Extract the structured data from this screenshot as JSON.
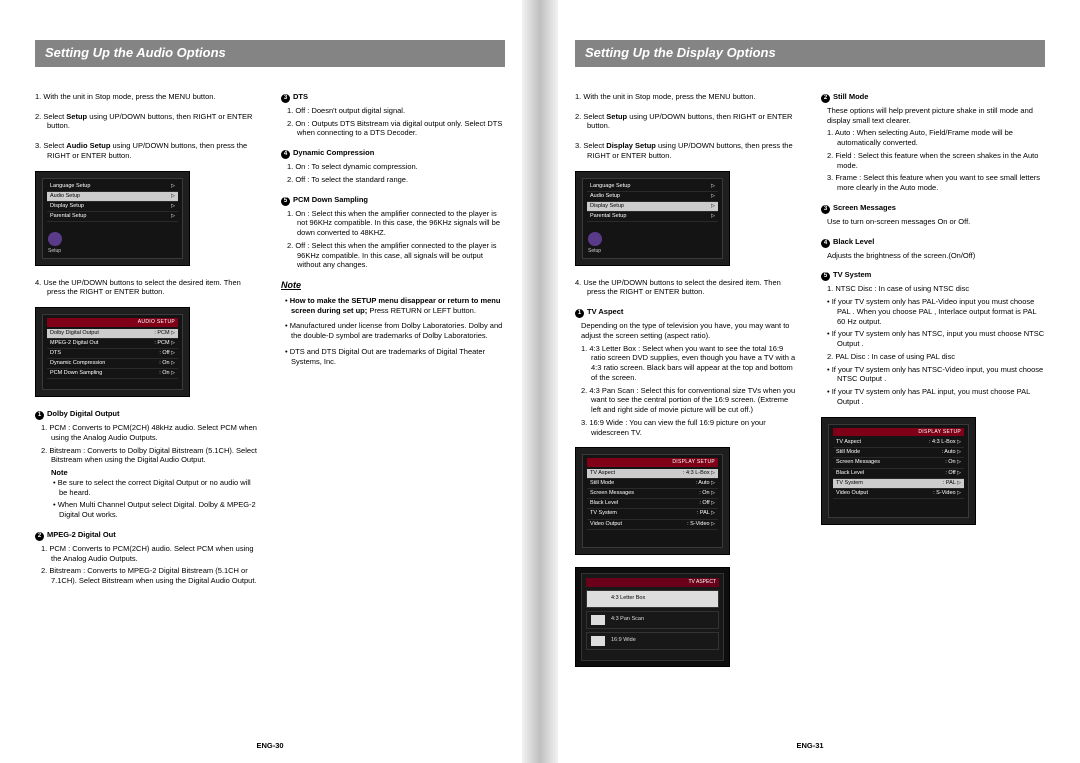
{
  "left": {
    "title": "Setting Up the Audio Options",
    "pageNo": "ENG-30",
    "steps1": [
      "1. With the unit in Stop mode, press the MENU button.",
      "2. Select <b>Setup</b> using UP/DOWN buttons, then RIGHT or ENTER button.",
      "3. Select <b>Audio Setup</b> using UP/DOWN buttons, then press the RIGHT or ENTER button."
    ],
    "step4": "4. Use the UP/DOWN buttons to select the desired item. Then press the RIGHT or ENTER button.",
    "setupMenu": {
      "header": "",
      "rows": [
        "Language Setup",
        "Audio Setup",
        "Display Setup",
        "Parental Setup"
      ],
      "selIndex": 1,
      "side": "Setup"
    },
    "audioMenu": {
      "header": "AUDIO SETUP",
      "rows": [
        [
          "Dolby Digital Output",
          ": PCM"
        ],
        [
          "MPEG-2 Digital Out",
          ": PCM"
        ],
        [
          "DTS",
          ": Off"
        ],
        [
          "Dynamic Compression",
          ": On"
        ],
        [
          "PCM Down Sampling",
          ": On"
        ]
      ],
      "selIndex": 0
    },
    "opts": [
      {
        "n": "1",
        "title": "Dolby Digital Output",
        "items": [
          "1. PCM : Converts to PCM(2CH) 48kHz audio. Select PCM when using the Analog Audio Outputs.",
          "2. Bitstream : Converts to Dolby Digital Bitstream (5.1CH). Select Bitstream when using the Digital Audio Output."
        ],
        "notes": [
          "• Be sure to select the correct Digital Output or no audio will be heard.",
          "• When Multi Channel Output select Digital. Dolby & MPEG-2 Digital Out works."
        ]
      },
      {
        "n": "2",
        "title": "MPEG-2 Digital Out",
        "items": [
          "1. PCM : Converts to PCM(2CH) audio. Select PCM when using the Analog Audio Outputs.",
          "2. Bitstream : Converts to MPEG-2 Digital Bitstream (5.1CH or 7.1CH). Select Bitstream when using the Digital Audio Output."
        ]
      }
    ],
    "optsRight": [
      {
        "n": "3",
        "title": "DTS",
        "items": [
          "1. Off : Doesn't output digital signal.",
          "2. On : Outputs DTS Bitstream via digital output only. Select DTS when connecting to a DTS Decoder."
        ]
      },
      {
        "n": "4",
        "title": "Dynamic Compression",
        "items": [
          "1. On : To select dynamic compression.",
          "2. Off : To select the standard range."
        ]
      },
      {
        "n": "5",
        "title": "PCM Down Sampling",
        "items": [
          "1. On : Select this when the amplifier connected to the player is not 96KHz compatible. In this case, the 96KHz signals will be down converted to 48KHZ.",
          "2. Off : Select this when the amplifier connected to the player is 96KHz compatible. In this case, all signals will be output without any changes."
        ]
      }
    ],
    "noteSec": {
      "label": "Note",
      "bullets": [
        "<b>How to make the SETUP menu disappear or return to menu screen during set up;</b> Press RETURN or LEFT button.",
        "Manufactured under license from Dolby Laboratories.  Dolby  and the double-D symbol are trademarks of Dolby Laboratories.",
        "DTS  and  DTS Digital Out  are trademarks of Digital Theater Systems, Inc."
      ]
    }
  },
  "right": {
    "title": "Setting Up the Display Options",
    "pageNo": "ENG-31",
    "steps1": [
      "1. With the unit in Stop mode, press the MENU button.",
      "2. Select <b>Setup</b> using UP/DOWN buttons, then RIGHT or ENTER button.",
      "3. Select <b>Display Setup</b> using UP/DOWN buttons, then press the RIGHT or ENTER button."
    ],
    "step4": "4. Use the UP/DOWN buttons to select the desired item. Then press the RIGHT or ENTER button.",
    "setupMenu": {
      "rows": [
        "Language Setup",
        "Audio Setup",
        "Display Setup",
        "Parental Setup"
      ],
      "selIndex": 2,
      "side": "Setup"
    },
    "tvAspect": {
      "n": "1",
      "title": "TV Aspect",
      "intro": "Depending on the type of television you have, you may want to adjust the screen setting (aspect ratio).",
      "items": [
        "1. 4:3 Letter Box : Select when you want to see the total 16:9 ratio screen DVD supplies, even though you have a TV with a 4:3 ratio screen. Black bars will appear at the top and bottom of the screen.",
        "2. 4:3 Pan Scan : Select this for conventional size TVs when you want to see the central portion of the 16:9 screen. (Extreme left and right side of movie picture will be cut off.)",
        "3. 16:9 Wide : You can view the full 16:9 picture on your widescreen TV."
      ]
    },
    "dispMenu": {
      "header": "DISPLAY SETUP",
      "rows": [
        [
          "TV Aspect",
          ": 4:3 L-Box"
        ],
        [
          "Still Mode",
          ": Auto"
        ],
        [
          "Screen Messages",
          ": On"
        ],
        [
          "Black Level",
          ": Off"
        ],
        [
          "TV System",
          ": PAL"
        ],
        [
          "Video Output",
          ": S-Video"
        ]
      ],
      "selIndex": 0
    },
    "aspectMenu": {
      "header": "TV ASPECT",
      "rows": [
        "4:3 Letter Box",
        "4:3 Pan Scan",
        "16:9 Wide"
      ],
      "selIndex": 0
    },
    "opts": [
      {
        "n": "2",
        "title": "Still Mode",
        "intro": "These options will help prevent picture shake in still mode and display small text clearer.",
        "items": [
          "1. Auto : When selecting Auto, Field/Frame mode will be automatically converted.",
          "2. Field : Select this feature when the screen shakes in the Auto mode.",
          "3. Frame : Select this feature when you want to see small letters more clearly in the Auto mode."
        ]
      },
      {
        "n": "3",
        "title": "Screen Messages",
        "intro": "Use to turn on-screen messages On or Off."
      },
      {
        "n": "4",
        "title": "Black Level",
        "intro": "Adjusts the brightness of the screen.(On/Off)"
      },
      {
        "n": "5",
        "title": "TV System",
        "items": [
          "1. NTSC Disc : In case of using NTSC disc",
          "• If your TV system only has PAL-Video input you must choose  PAL . When you choose  PAL , Interlace output format is PAL 60 Hz output.",
          "• If your TV system only has NTSC, input you must choose  NTSC Output .",
          "2. PAL Disc : In case of using PAL disc",
          "• If your TV system only has NTSC-Video input, you must choose  NTSC Output .",
          "• If your TV system only has PAL input, you must choose  PAL Output ."
        ]
      }
    ],
    "dispMenu2": {
      "header": "DISPLAY SETUP",
      "rows": [
        [
          "TV Aspect",
          ": 4:3 L-Box"
        ],
        [
          "Still Mode",
          ": Auto"
        ],
        [
          "Screen Messages",
          ": On"
        ],
        [
          "Black Level",
          ": Off"
        ],
        [
          "TV System",
          ": PAL"
        ],
        [
          "Video Output",
          ": S-Video"
        ]
      ],
      "selIndex": 4
    }
  }
}
